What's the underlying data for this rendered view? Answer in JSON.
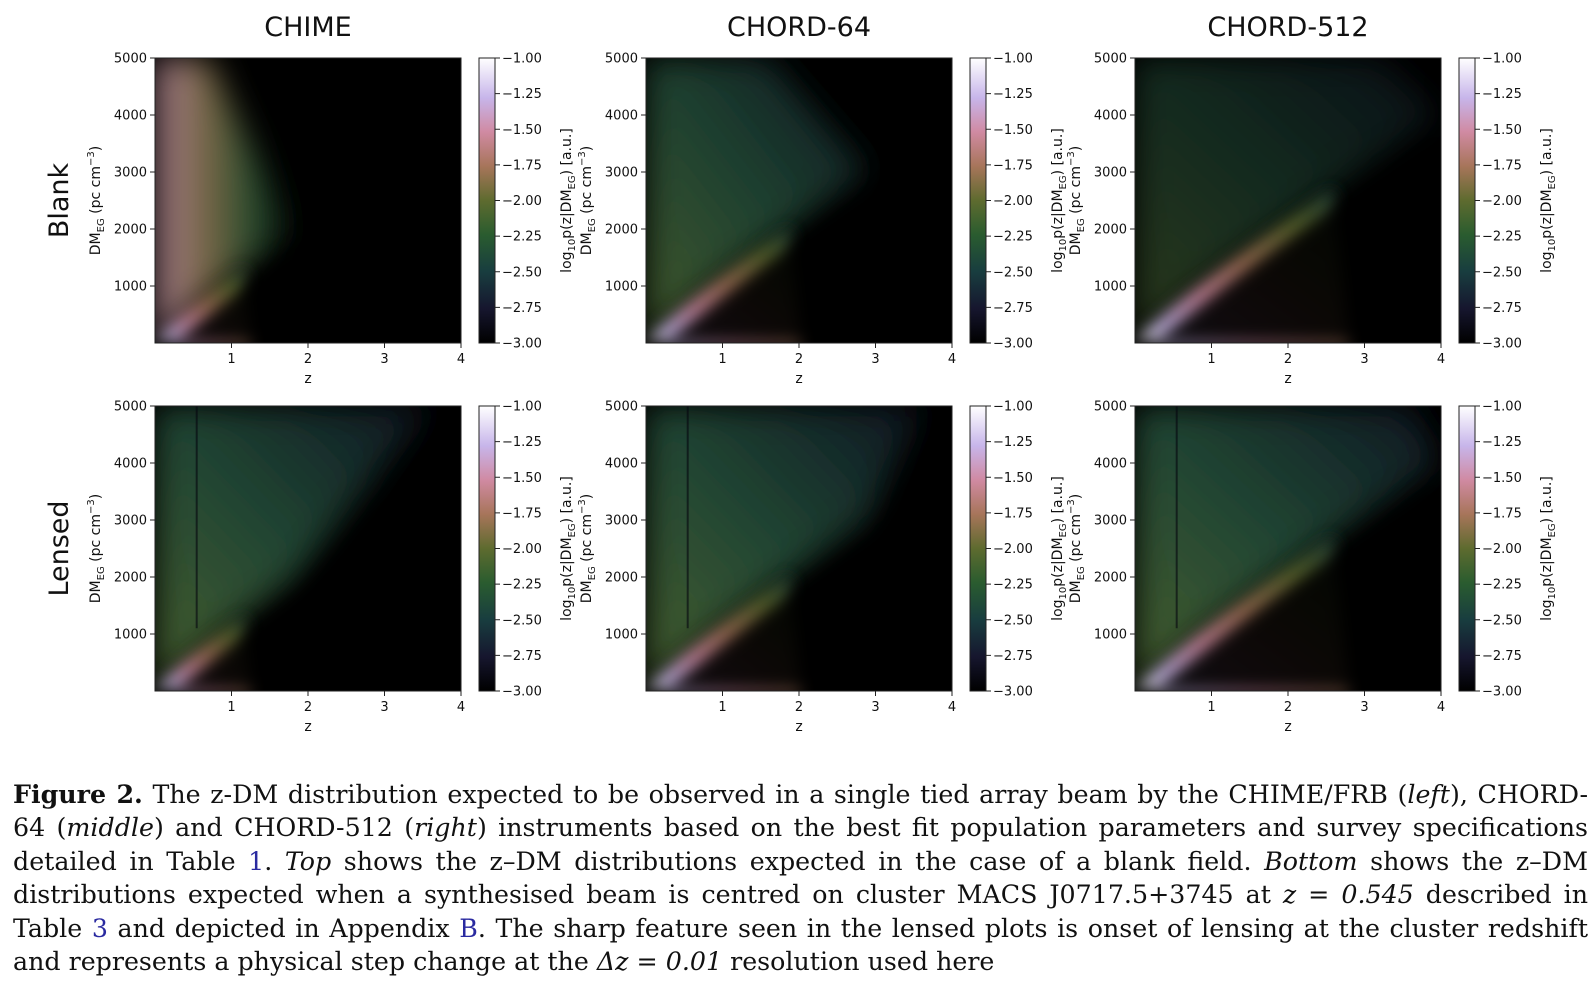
{
  "chart_data": {
    "type": "heatmap",
    "column_titles": [
      "CHIME",
      "CHORD-64",
      "CHORD-512"
    ],
    "row_labels": [
      "Blank",
      "Lensed"
    ],
    "xlabel": "z",
    "ylabel": "DM$_{EG}$ (pc cm$^{-3}$)",
    "ylabel_parts": {
      "base": "DM",
      "sub": "EG",
      "mid": " (pc cm",
      "sup": "−3",
      "end": ")"
    },
    "colorbar_label": "log10 p(z|DMEG) [a.u.]",
    "colorbar_label_parts": {
      "prefix": "log",
      "sub1": "10",
      "mid": "p(z|DM",
      "sub2": "EG",
      "end": ") [a.u.]"
    },
    "xlim": [
      0,
      4
    ],
    "ylim": [
      0,
      5000
    ],
    "clim": [
      -3.0,
      -1.0
    ],
    "x_ticks": [
      1,
      2,
      3,
      4
    ],
    "y_ticks": [
      1000,
      2000,
      3000,
      4000,
      5000
    ],
    "colorbar_ticks": [
      "-1.00",
      "-1.25",
      "-1.50",
      "-1.75",
      "-2.00",
      "-2.25",
      "-2.50",
      "-2.75",
      "-3.00"
    ],
    "colormap": "cubehelix",
    "lensing_cluster_z": 0.545,
    "panels": [
      {
        "row": "Blank",
        "column": "CHIME"
      },
      {
        "row": "Blank",
        "column": "CHORD-64"
      },
      {
        "row": "Blank",
        "column": "CHORD-512"
      },
      {
        "row": "Lensed",
        "column": "CHIME"
      },
      {
        "row": "Lensed",
        "column": "CHORD-64"
      },
      {
        "row": "Lensed",
        "column": "CHORD-512"
      }
    ]
  },
  "caption": {
    "label": "Figure 2.",
    "seg1": " The z-DM distribution expected to be observed in a single tied array beam by the CHIME/FRB (",
    "left": "left",
    "seg2": "), CHORD-64 (",
    "middle": "middle",
    "seg3": ") and CHORD-512 (",
    "right": "right",
    "seg4": ") instruments based on the best fit population parameters and survey specifications detailed in Table ",
    "ref_table1": "1",
    "seg5": ". ",
    "top": "Top",
    "seg6": " shows the z–DM distributions expected in the case of a blank field. ",
    "bottom": "Bottom",
    "seg7": " shows the z–DM distributions expected when a synthesised beam is centred on cluster MACS J0717.5+3745 at ",
    "z_eq": "z = 0.545",
    "seg8": " described in Table ",
    "ref_table3": "3",
    "seg9": " and depicted in Appendix ",
    "ref_appB": "B",
    "seg10": ". The sharp feature seen in the lensed plots is onset of lensing at the cluster redshift and represents a physical step change at the ",
    "dz_eq": "Δz = 0.01",
    "seg11": " resolution used here"
  }
}
